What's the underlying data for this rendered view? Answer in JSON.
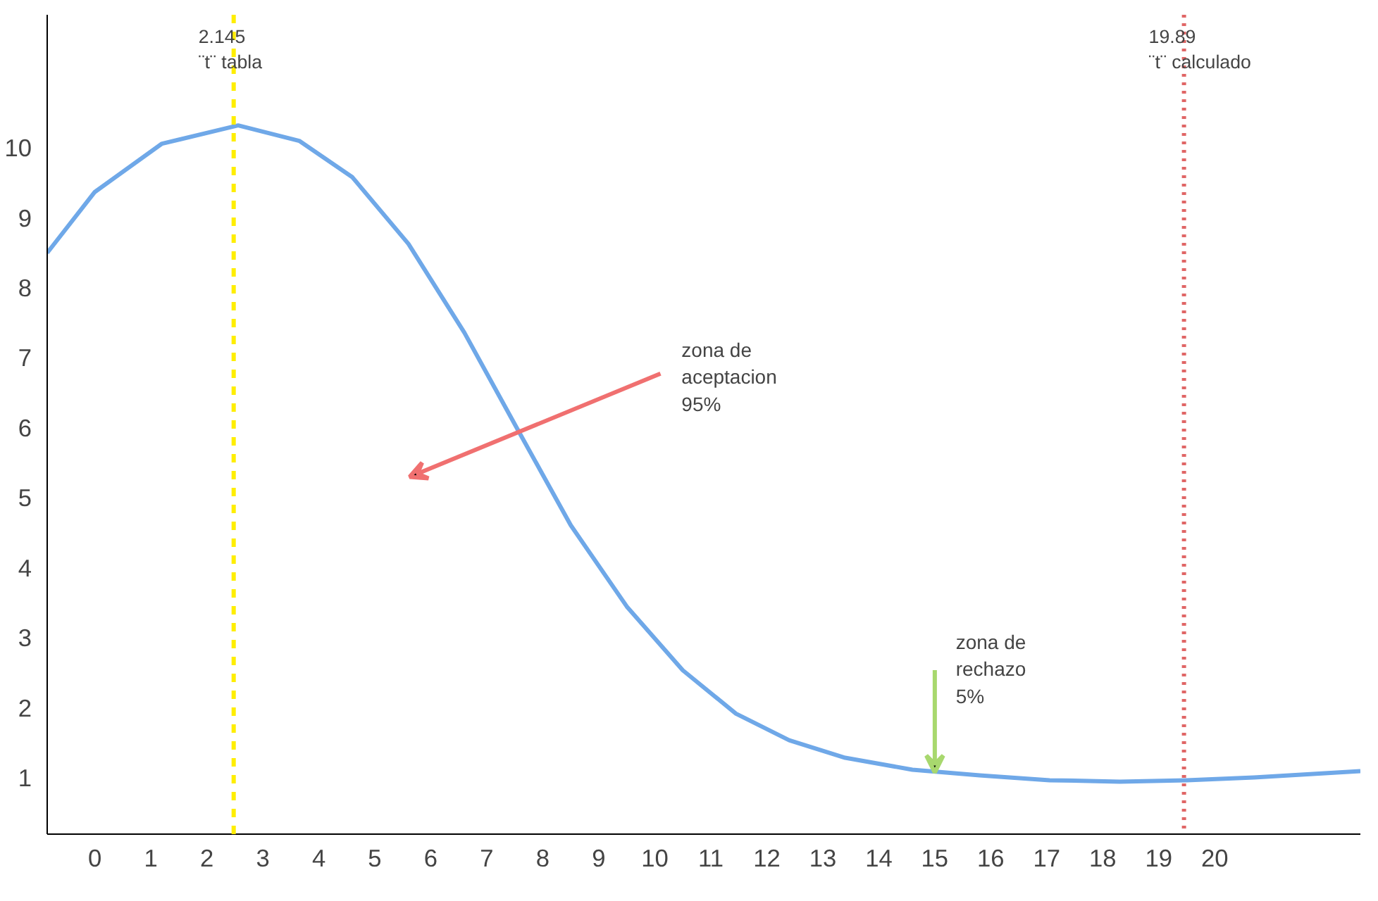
{
  "chart_data": {
    "type": "line",
    "x": [
      -0.85,
      0,
      1.2,
      2.56,
      3.65,
      4.6,
      5.6,
      6.6,
      7.55,
      8.5,
      9.5,
      10.5,
      11.45,
      12.4,
      13.4,
      14.6,
      15.8,
      17.05,
      18.3,
      19.5,
      20.7,
      22.6
    ],
    "series": [
      {
        "color": "#6fa8e8",
        "values": [
          8.5,
          9.37,
          10.06,
          10.32,
          10.1,
          9.58,
          8.63,
          7.36,
          5.98,
          4.61,
          3.45,
          2.54,
          1.92,
          1.54,
          1.29,
          1.12,
          1.04,
          0.97,
          0.95,
          0.97,
          1.01,
          1.1
        ]
      }
    ],
    "xlim": [
      -0.85,
      22.6
    ],
    "ylim": [
      0.2,
      11.9
    ],
    "xticks": [
      0,
      1,
      2,
      3,
      4,
      5,
      6,
      7,
      8,
      9,
      10,
      11,
      12,
      13,
      14,
      15,
      16,
      17,
      18,
      19,
      20
    ],
    "yticks": [
      1,
      2,
      3,
      4,
      5,
      6,
      7,
      8,
      9,
      10
    ],
    "ref_lines": [
      {
        "axis": "x",
        "value": 2.48,
        "label": "2.145\n¨t¨ tabla",
        "color": "#ffee00",
        "line_style": "dashed"
      },
      {
        "axis": "x",
        "value": 19.45,
        "label": "19.89\n¨t¨ calculado",
        "color": "#e06666",
        "line_style": "dotted"
      }
    ],
    "annotations": [
      "zona de\naceptacion\n95%",
      {
        "text": "zona de\nrechazo\n5%",
        "x": 15.0,
        "y": 1.08
      }
    ],
    "grid": false,
    "marker": "none",
    "line_style": "solid"
  }
}
